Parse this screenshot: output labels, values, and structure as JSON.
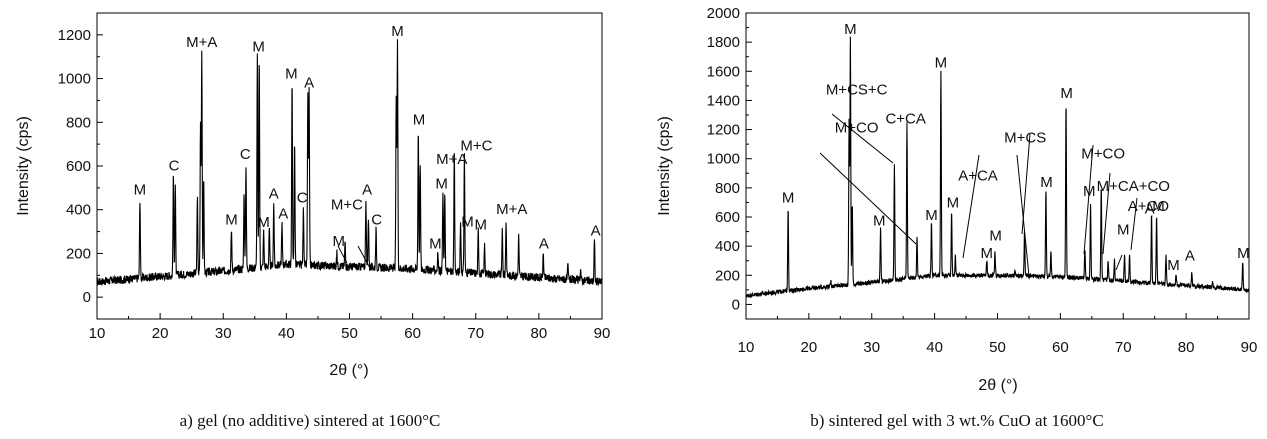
{
  "chart_data": [
    {
      "type": "line",
      "caption": "a) gel (no additive) sintered at 1600°C",
      "xlabel": "2θ (°)",
      "ylabel": "Intensity (cps)",
      "xlim": [
        10,
        90
      ],
      "ylim": [
        -100,
        1300
      ],
      "xticks": [
        10,
        20,
        30,
        40,
        50,
        60,
        70,
        80,
        90
      ],
      "yticks": [
        0,
        200,
        400,
        600,
        800,
        1000,
        1200
      ],
      "baseline": [
        [
          10,
          70
        ],
        [
          20,
          95
        ],
        [
          30,
          120
        ],
        [
          40,
          150
        ],
        [
          50,
          140
        ],
        [
          60,
          130
        ],
        [
          70,
          110
        ],
        [
          80,
          90
        ],
        [
          90,
          70
        ]
      ],
      "peaks": [
        {
          "x": 16.8,
          "y": 450
        },
        {
          "x": 22.1,
          "y": 560
        },
        {
          "x": 22.4,
          "y": 520
        },
        {
          "x": 25.9,
          "y": 460
        },
        {
          "x": 26.4,
          "y": 810
        },
        {
          "x": 26.6,
          "y": 1120
        },
        {
          "x": 26.9,
          "y": 530
        },
        {
          "x": 31.3,
          "y": 310
        },
        {
          "x": 33.3,
          "y": 480
        },
        {
          "x": 33.6,
          "y": 610
        },
        {
          "x": 35.4,
          "y": 1100
        },
        {
          "x": 35.7,
          "y": 1090
        },
        {
          "x": 36.4,
          "y": 300
        },
        {
          "x": 37.3,
          "y": 310
        },
        {
          "x": 38.0,
          "y": 430
        },
        {
          "x": 39.3,
          "y": 340
        },
        {
          "x": 40.9,
          "y": 980
        },
        {
          "x": 41.3,
          "y": 720
        },
        {
          "x": 42.7,
          "y": 410
        },
        {
          "x": 43.4,
          "y": 920
        },
        {
          "x": 43.6,
          "y": 940
        },
        {
          "x": 48.0,
          "y": 200
        },
        {
          "x": 49.3,
          "y": 250
        },
        {
          "x": 52.6,
          "y": 450
        },
        {
          "x": 53.0,
          "y": 370
        },
        {
          "x": 54.2,
          "y": 310
        },
        {
          "x": 57.4,
          "y": 920
        },
        {
          "x": 57.6,
          "y": 1170
        },
        {
          "x": 60.9,
          "y": 770
        },
        {
          "x": 61.2,
          "y": 620
        },
        {
          "x": 64.0,
          "y": 200
        },
        {
          "x": 64.8,
          "y": 480
        },
        {
          "x": 65.1,
          "y": 470
        },
        {
          "x": 66.6,
          "y": 650
        },
        {
          "x": 67.6,
          "y": 340
        },
        {
          "x": 68.2,
          "y": 650
        },
        {
          "x": 70.4,
          "y": 310
        },
        {
          "x": 71.4,
          "y": 240
        },
        {
          "x": 74.2,
          "y": 300
        },
        {
          "x": 74.8,
          "y": 350
        },
        {
          "x": 76.8,
          "y": 280
        },
        {
          "x": 80.7,
          "y": 200
        },
        {
          "x": 84.6,
          "y": 140
        },
        {
          "x": 86.6,
          "y": 130
        },
        {
          "x": 88.8,
          "y": 260
        }
      ],
      "annotations": [
        {
          "text": "M",
          "x": 16.8,
          "y": 470
        },
        {
          "text": "C",
          "x": 22.2,
          "y": 580
        },
        {
          "text": "M+A",
          "x": 26.6,
          "y": 1145
        },
        {
          "text": "M",
          "x": 31.3,
          "y": 332
        },
        {
          "text": "C",
          "x": 33.5,
          "y": 632
        },
        {
          "text": "M",
          "x": 35.6,
          "y": 1125
        },
        {
          "text": "M",
          "x": 36.4,
          "y": 322
        },
        {
          "text": "A",
          "x": 38.0,
          "y": 452
        },
        {
          "text": "A",
          "x": 39.5,
          "y": 360
        },
        {
          "text": "M",
          "x": 40.8,
          "y": 1000
        },
        {
          "text": "C",
          "x": 42.5,
          "y": 432
        },
        {
          "text": "A",
          "x": 43.6,
          "y": 960
        },
        {
          "text": "M+C",
          "x": 49.6,
          "y": 400
        },
        {
          "text": "M",
          "x": 48.3,
          "y": 235
        },
        {
          "text": "A",
          "x": 52.8,
          "y": 470
        },
        {
          "text": "C",
          "x": 54.3,
          "y": 332
        },
        {
          "text": "M",
          "x": 57.6,
          "y": 1195
        },
        {
          "text": "M",
          "x": 61.0,
          "y": 790
        },
        {
          "text": "M",
          "x": 63.6,
          "y": 222
        },
        {
          "text": "M+A",
          "x": 66.2,
          "y": 610
        },
        {
          "text": "M",
          "x": 64.6,
          "y": 498
        },
        {
          "text": "M+C",
          "x": 70.1,
          "y": 672
        },
        {
          "text": "M",
          "x": 68.7,
          "y": 324
        },
        {
          "text": "M",
          "x": 70.8,
          "y": 310
        },
        {
          "text": "M+A",
          "x": 75.7,
          "y": 380
        },
        {
          "text": "A",
          "x": 80.8,
          "y": 222
        },
        {
          "text": "A",
          "x": 89.0,
          "y": 282
        }
      ]
    },
    {
      "type": "line",
      "caption": "b) sintered gel with 3 wt.% CuO at 1600°C",
      "xlabel": "2θ (°)",
      "ylabel": "Intensity (cps)",
      "xlim": [
        10,
        90
      ],
      "ylim": [
        -100,
        2000
      ],
      "xticks": [
        10,
        20,
        30,
        40,
        50,
        60,
        70,
        80,
        90
      ],
      "yticks": [
        0,
        100,
        200,
        300,
        400,
        500,
        600,
        700,
        800,
        900,
        1000,
        1100,
        1200,
        1300,
        1400,
        1500,
        1600,
        1700,
        1800,
        1900,
        2000
      ],
      "ytick_labels": [
        0,
        200,
        400,
        600,
        800,
        1000,
        1200,
        1400,
        1600,
        1800,
        2000
      ],
      "baseline": [
        [
          10,
          60
        ],
        [
          20,
          110
        ],
        [
          30,
          150
        ],
        [
          40,
          200
        ],
        [
          50,
          200
        ],
        [
          60,
          190
        ],
        [
          70,
          160
        ],
        [
          80,
          130
        ],
        [
          90,
          100
        ]
      ],
      "peaks": [
        {
          "x": 16.7,
          "y": 670
        },
        {
          "x": 23.5,
          "y": 160
        },
        {
          "x": 26.4,
          "y": 1270
        },
        {
          "x": 26.6,
          "y": 1830
        },
        {
          "x": 26.9,
          "y": 700
        },
        {
          "x": 31.4,
          "y": 520
        },
        {
          "x": 33.6,
          "y": 960
        },
        {
          "x": 35.6,
          "y": 1250
        },
        {
          "x": 37.2,
          "y": 460
        },
        {
          "x": 39.5,
          "y": 560
        },
        {
          "x": 41.0,
          "y": 1600
        },
        {
          "x": 42.7,
          "y": 640
        },
        {
          "x": 43.3,
          "y": 330
        },
        {
          "x": 48.3,
          "y": 300
        },
        {
          "x": 49.6,
          "y": 360
        },
        {
          "x": 52.8,
          "y": 230
        },
        {
          "x": 54.3,
          "y": 500
        },
        {
          "x": 57.7,
          "y": 790
        },
        {
          "x": 58.5,
          "y": 360
        },
        {
          "x": 60.9,
          "y": 1390
        },
        {
          "x": 63.9,
          "y": 380
        },
        {
          "x": 64.8,
          "y": 680
        },
        {
          "x": 66.5,
          "y": 820
        },
        {
          "x": 67.6,
          "y": 300
        },
        {
          "x": 68.6,
          "y": 300
        },
        {
          "x": 70.2,
          "y": 340
        },
        {
          "x": 71.0,
          "y": 330
        },
        {
          "x": 74.5,
          "y": 620
        },
        {
          "x": 75.3,
          "y": 620
        },
        {
          "x": 76.8,
          "y": 340
        },
        {
          "x": 78.4,
          "y": 210
        },
        {
          "x": 80.9,
          "y": 230
        },
        {
          "x": 84.2,
          "y": 150
        },
        {
          "x": 89.0,
          "y": 290
        }
      ],
      "annotations": [
        {
          "text": "M",
          "x": 16.7,
          "y": 700
        },
        {
          "text": "M",
          "x": 26.6,
          "y": 1855
        },
        {
          "text": "M+CS+C",
          "x": 27.6,
          "y": 1440
        },
        {
          "text": "C+CA",
          "x": 35.4,
          "y": 1240
        },
        {
          "text": "M+CO",
          "x": 27.6,
          "y": 1180
        },
        {
          "text": "M",
          "x": 31.2,
          "y": 540
        },
        {
          "text": "M",
          "x": 39.5,
          "y": 580
        },
        {
          "text": "M",
          "x": 41.0,
          "y": 1625
        },
        {
          "text": "M",
          "x": 42.9,
          "y": 665
        },
        {
          "text": "A+CA",
          "x": 46.9,
          "y": 850
        },
        {
          "text": "M+CS",
          "x": 54.4,
          "y": 1110
        },
        {
          "text": "M",
          "x": 48.3,
          "y": 320
        },
        {
          "text": "M",
          "x": 49.7,
          "y": 440
        },
        {
          "text": "M",
          "x": 57.8,
          "y": 805
        },
        {
          "text": "M",
          "x": 61.0,
          "y": 1415
        },
        {
          "text": "M+CO",
          "x": 66.8,
          "y": 1000
        },
        {
          "text": "M+CA+CO",
          "x": 71.6,
          "y": 780
        },
        {
          "text": "M",
          "x": 64.6,
          "y": 745
        },
        {
          "text": "A+CO",
          "x": 74.0,
          "y": 640
        },
        {
          "text": "M",
          "x": 70.0,
          "y": 480
        },
        {
          "text": "A",
          "x": 74.2,
          "y": 625
        },
        {
          "text": "M",
          "x": 75.6,
          "y": 640
        },
        {
          "text": "M",
          "x": 78.0,
          "y": 235
        },
        {
          "text": "A",
          "x": 80.6,
          "y": 300
        },
        {
          "text": "M",
          "x": 89.1,
          "y": 320
        }
      ]
    }
  ]
}
